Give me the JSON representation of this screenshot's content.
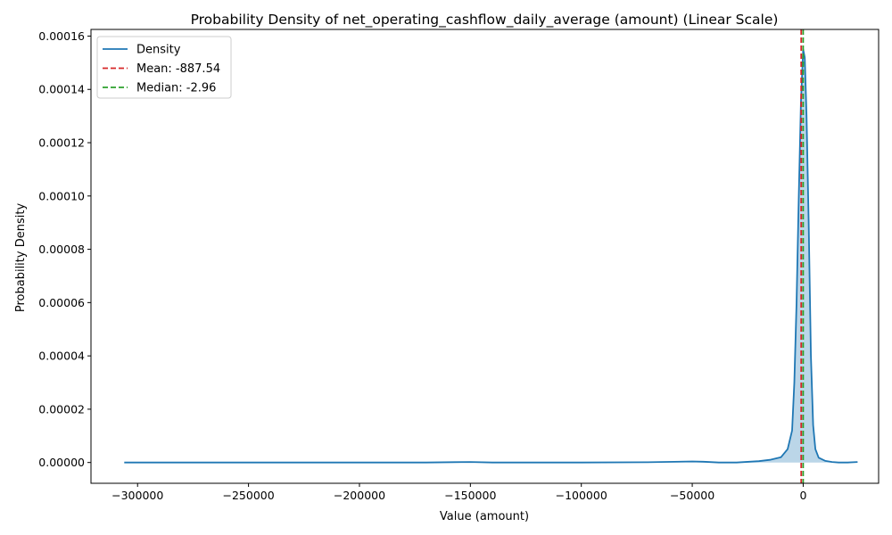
{
  "chart_data": {
    "type": "area",
    "title": "Probability Density of net_operating_cashflow_daily_average (amount) (Linear Scale)",
    "xlabel": "Value (amount)",
    "ylabel": "Probability Density",
    "xlim": [
      -321000,
      34000
    ],
    "ylim": [
      -7.8e-06,
      0.0001625
    ],
    "x_ticks": [
      -300000,
      -250000,
      -200000,
      -150000,
      -100000,
      -50000,
      0
    ],
    "x_tick_labels": [
      "−300000",
      "−250000",
      "−200000",
      "−150000",
      "−100000",
      "−50000",
      "0"
    ],
    "y_ticks": [
      0,
      2e-05,
      4e-05,
      6e-05,
      8e-05,
      0.0001,
      0.00012,
      0.00014,
      0.00016
    ],
    "y_tick_labels": [
      "0.00000",
      "0.00002",
      "0.00004",
      "0.00006",
      "0.00008",
      "0.00010",
      "0.00012",
      "0.00014",
      "0.00016"
    ],
    "grid": false,
    "legend_position": "top-left",
    "series": [
      {
        "name": "Density",
        "color": "#1f77b4",
        "fill_color": "#1f77b4",
        "x": [
          -306000,
          -290000,
          -250000,
          -200000,
          -170000,
          -150000,
          -140000,
          -100000,
          -70000,
          -50000,
          -45000,
          -38000,
          -30000,
          -20000,
          -15000,
          -10000,
          -7000,
          -5000,
          -4000,
          -3000,
          -2000,
          -1000,
          0,
          700,
          1500,
          2500,
          3500,
          4500,
          5500,
          7000,
          10000,
          13000,
          16000,
          20000,
          24500
        ],
        "values": [
          0,
          0,
          0,
          0,
          0,
          2e-07,
          0,
          0,
          1e-07,
          4e-07,
          3e-07,
          0,
          0,
          5e-07,
          1e-06,
          2e-06,
          5e-06,
          1.2e-05,
          3e-05,
          6e-05,
          0.0001,
          0.000135,
          0.000155,
          0.000152,
          0.00013,
          9e-05,
          4e-05,
          1.4e-05,
          5e-06,
          1.8e-06,
          6e-07,
          2e-07,
          0,
          0,
          2e-07
        ]
      }
    ],
    "vlines": [
      {
        "name": "Mean: -887.54",
        "x": -887.54,
        "color": "#d62728",
        "style": "dashed"
      },
      {
        "name": "Median: -2.96",
        "x": -2.96,
        "color": "#2ca02c",
        "style": "dashed"
      }
    ]
  }
}
